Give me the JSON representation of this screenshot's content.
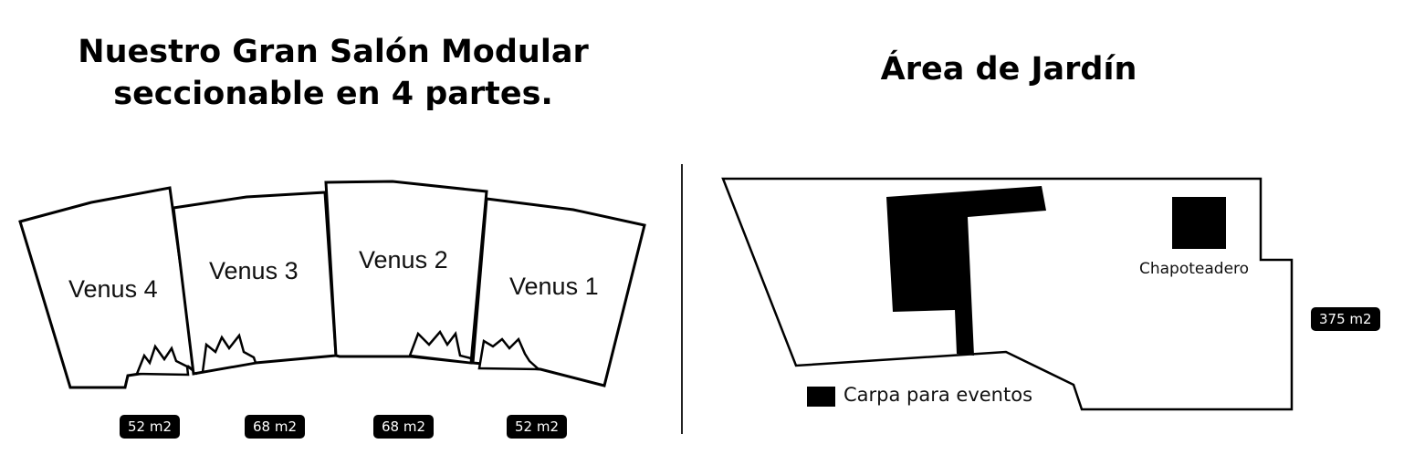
{
  "salon": {
    "title_line1": "Nuestro Gran Salón Modular",
    "title_line2": "seccionable en 4 partes.",
    "rooms": [
      {
        "name": "Venus 4",
        "area": "52 m2"
      },
      {
        "name": "Venus 3",
        "area": "68 m2"
      },
      {
        "name": "Venus 2",
        "area": "68 m2"
      },
      {
        "name": "Venus 1",
        "area": "52 m2"
      }
    ]
  },
  "garden": {
    "title": "Área de Jardín",
    "pool_label": "Chapoteadero",
    "area": "375 m2",
    "legend_label": "Carpa para eventos"
  }
}
